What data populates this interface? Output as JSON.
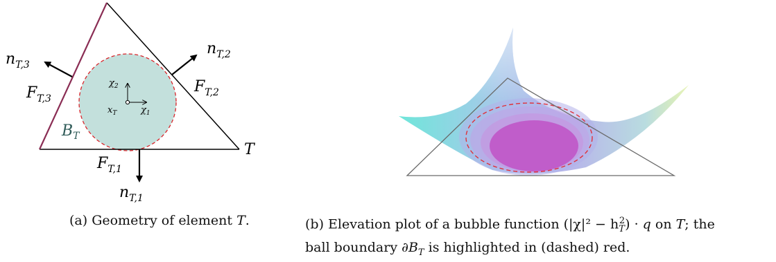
{
  "panel_a": {
    "element_label": "T",
    "ball_label": "B",
    "ball_sub": "T",
    "origin_label": "x",
    "origin_sub": "T",
    "axis1_label": "χ",
    "axis1_sub": "1",
    "axis2_label": "χ",
    "axis2_sub": "2",
    "faces": [
      {
        "name": "F",
        "sub": "T,1"
      },
      {
        "name": "F",
        "sub": "T,2"
      },
      {
        "name": "F",
        "sub": "T,3"
      }
    ],
    "normals": [
      {
        "name": "n",
        "sub": "T,1"
      },
      {
        "name": "n",
        "sub": "T,2"
      },
      {
        "name": "n",
        "sub": "T,3"
      }
    ],
    "colors": {
      "ball_fill": "#c3e0dc",
      "ball_boundary": "#d9252b",
      "face3_edge": "#8a2d54",
      "ball_label": "#2e5a57"
    }
  },
  "panel_b": {
    "colors": {
      "surface_outer": "#7fe3d9",
      "surface_mid": "#a8a8e8",
      "surface_inner": "#c058c8",
      "ball_boundary": "#e0303a",
      "triangle": "#6a6a6a"
    }
  },
  "captions": {
    "a": {
      "prefix": "(a) Geometry of element ",
      "var": "T",
      "suffix": "."
    },
    "b": {
      "line1_prefix": "(b) Elevation plot of a bubble function (|χ|² − h",
      "line1_sub": "T",
      "line1_sup": "2",
      "line1_mid": ") · ",
      "line1_var": "q",
      "line1_on": " on ",
      "line1_T": "T",
      "line1_end": "; the",
      "line2_prefix": "ball boundary ∂",
      "line2_B": "B",
      "line2_sub": "T",
      "line2_end": " is highlighted in (dashed) red."
    }
  }
}
